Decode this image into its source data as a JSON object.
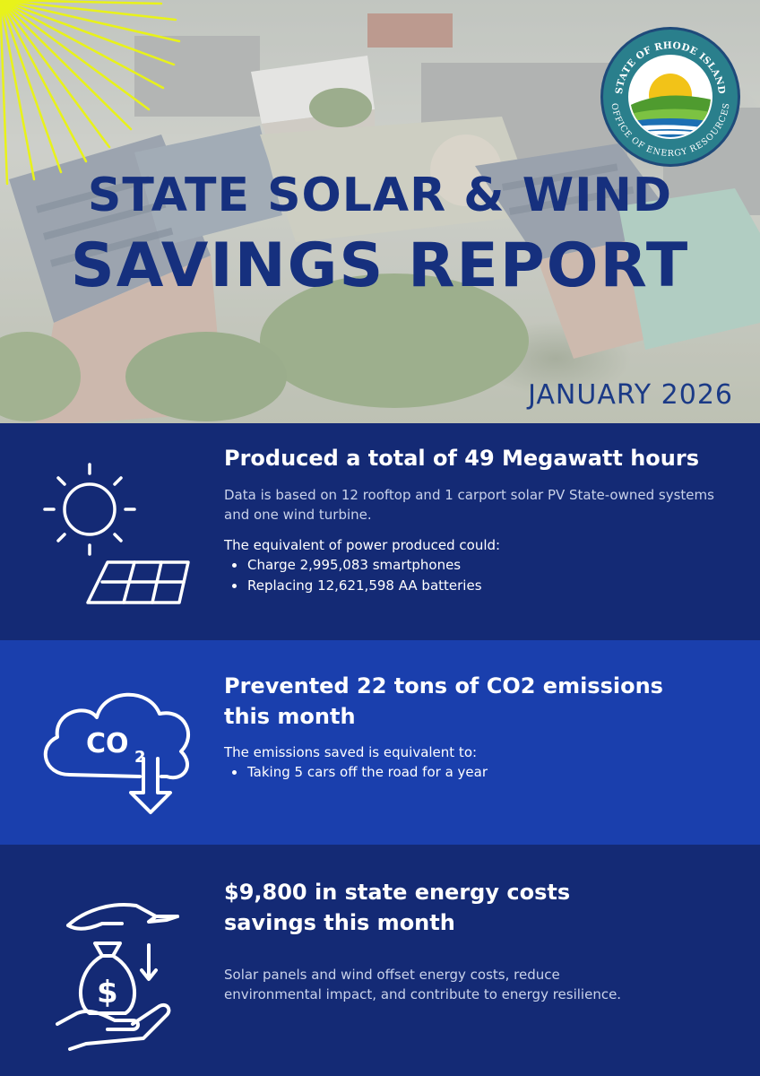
{
  "header": {
    "title_line1": "STATE SOLAR & WIND",
    "title_line2": "SAVINGS REPORT",
    "date": "JANUARY 2026",
    "seal": {
      "top_text": "STATE OF RHODE ISLAND",
      "bottom_text": "OFFICE OF ENERGY RESOURCES"
    }
  },
  "sections": [
    {
      "icon": "sun-solar-panel-icon",
      "heading": "Produced a total of 49 Megawatt hours",
      "description": "Data is based on 12 rooftop and 1 carport solar PV State-owned systems and one wind turbine.",
      "lead": "The equivalent of power produced could:",
      "bullets": [
        "Charge 2,995,083 smartphones",
        "Replacing 12,621,598 AA batteries"
      ]
    },
    {
      "icon": "co2-cloud-icon",
      "heading": "Prevented 22 tons of CO2 emissions this month",
      "lead": "The emissions saved is equivalent to:",
      "bullets": [
        "Taking 5 cars off the road for a year"
      ]
    },
    {
      "icon": "money-bag-hands-icon",
      "heading": "$9,800 in state energy costs savings this month",
      "description": "Solar panels and wind offset energy costs, reduce environmental impact, and contribute to energy resilience."
    }
  ],
  "colors": {
    "title": "#16307e",
    "section_dark": "#142a75",
    "section_mid": "#1a3fad",
    "rays": "#e8f21a"
  }
}
